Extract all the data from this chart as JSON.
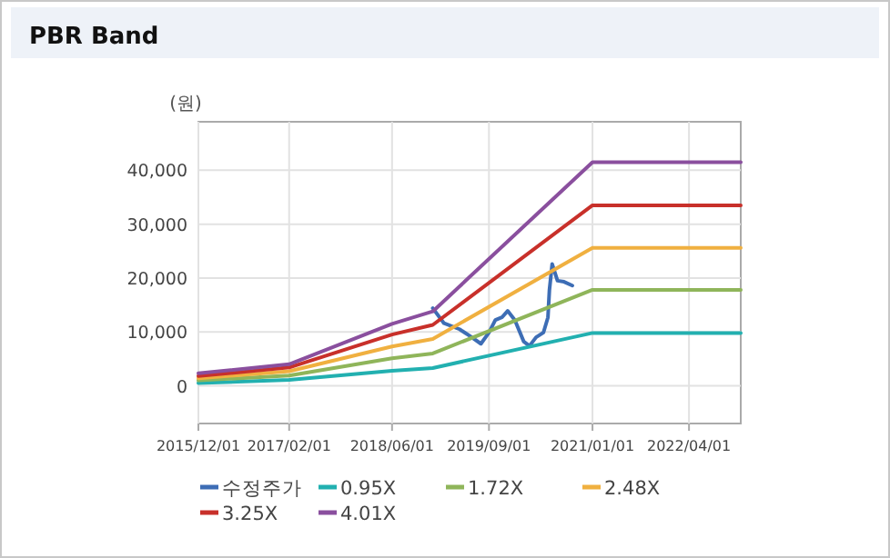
{
  "chart_data": {
    "type": "line",
    "title": "PBR Band",
    "ylabel": "(원)",
    "xlim": [
      "2015-12-01",
      "2022-12-01"
    ],
    "xticks": [
      {
        "value": "2015-12-01",
        "label": "2015/12/01"
      },
      {
        "value": "2017-02-01",
        "label": "2017/02/01"
      },
      {
        "value": "2018-06-01",
        "label": "2018/06/01"
      },
      {
        "value": "2019-09-01",
        "label": "2019/09/01"
      },
      {
        "value": "2021-01-01",
        "label": "2021/01/01"
      },
      {
        "value": "2022-04-01",
        "label": "2022/04/01"
      }
    ],
    "ylim": [
      -7000,
      49000
    ],
    "yticks": [
      {
        "value": 0,
        "label": "0"
      },
      {
        "value": 10000,
        "label": "10,000"
      },
      {
        "value": 20000,
        "label": "20,000"
      },
      {
        "value": 30000,
        "label": "30,000"
      },
      {
        "value": 40000,
        "label": "40,000"
      }
    ],
    "grid": true,
    "legend": "bottom",
    "marker": "none",
    "line_style": "solid",
    "series": [
      {
        "name": "수정주가",
        "color": "#3d6db5",
        "x": [
          "2018-12-10",
          "2019-02-01",
          "2019-04-15",
          "2019-06-01",
          "2019-07-25",
          "2019-09-01",
          "2019-10-01",
          "2019-11-01",
          "2019-11-28",
          "2020-01-01",
          "2020-02-12",
          "2020-03-10",
          "2020-04-10",
          "2020-05-15",
          "2020-06-05",
          "2020-06-12",
          "2020-06-25",
          "2020-07-20",
          "2020-08-20",
          "2020-09-28"
        ],
        "values": [
          14400,
          11600,
          10500,
          9300,
          7800,
          9900,
          12200,
          12700,
          13900,
          12200,
          8200,
          7400,
          9000,
          9900,
          12700,
          17800,
          22600,
          19500,
          19300,
          18600
        ]
      },
      {
        "name": "0.95X",
        "color": "#22b0b0",
        "x": [
          "2015-12-01",
          "2017-02-01",
          "2018-06-01",
          "2018-12-10",
          "2021-01-01",
          "2022-12-01"
        ],
        "values": [
          500,
          1100,
          2800,
          3300,
          9800,
          9800
        ]
      },
      {
        "name": "1.72X",
        "color": "#8fb55a",
        "x": [
          "2015-12-01",
          "2017-02-01",
          "2018-06-01",
          "2018-12-10",
          "2021-01-01",
          "2022-12-01"
        ],
        "values": [
          1000,
          1900,
          5100,
          6000,
          17800,
          17800
        ]
      },
      {
        "name": "2.48X",
        "color": "#f0b040",
        "x": [
          "2015-12-01",
          "2017-02-01",
          "2018-06-01",
          "2018-12-10",
          "2021-01-01",
          "2022-12-01"
        ],
        "values": [
          1400,
          2700,
          7300,
          8700,
          25600,
          25600
        ]
      },
      {
        "name": "3.25X",
        "color": "#c8302a",
        "x": [
          "2015-12-01",
          "2017-02-01",
          "2018-06-01",
          "2018-12-10",
          "2021-01-01",
          "2022-12-01"
        ],
        "values": [
          1800,
          3400,
          9500,
          11300,
          33500,
          33500
        ]
      },
      {
        "name": "4.01X",
        "color": "#8a4f9e",
        "x": [
          "2015-12-01",
          "2017-02-01",
          "2018-06-01",
          "2018-12-10",
          "2021-01-01",
          "2022-12-01"
        ],
        "values": [
          2300,
          4000,
          11500,
          13800,
          41500,
          41500
        ]
      }
    ]
  }
}
